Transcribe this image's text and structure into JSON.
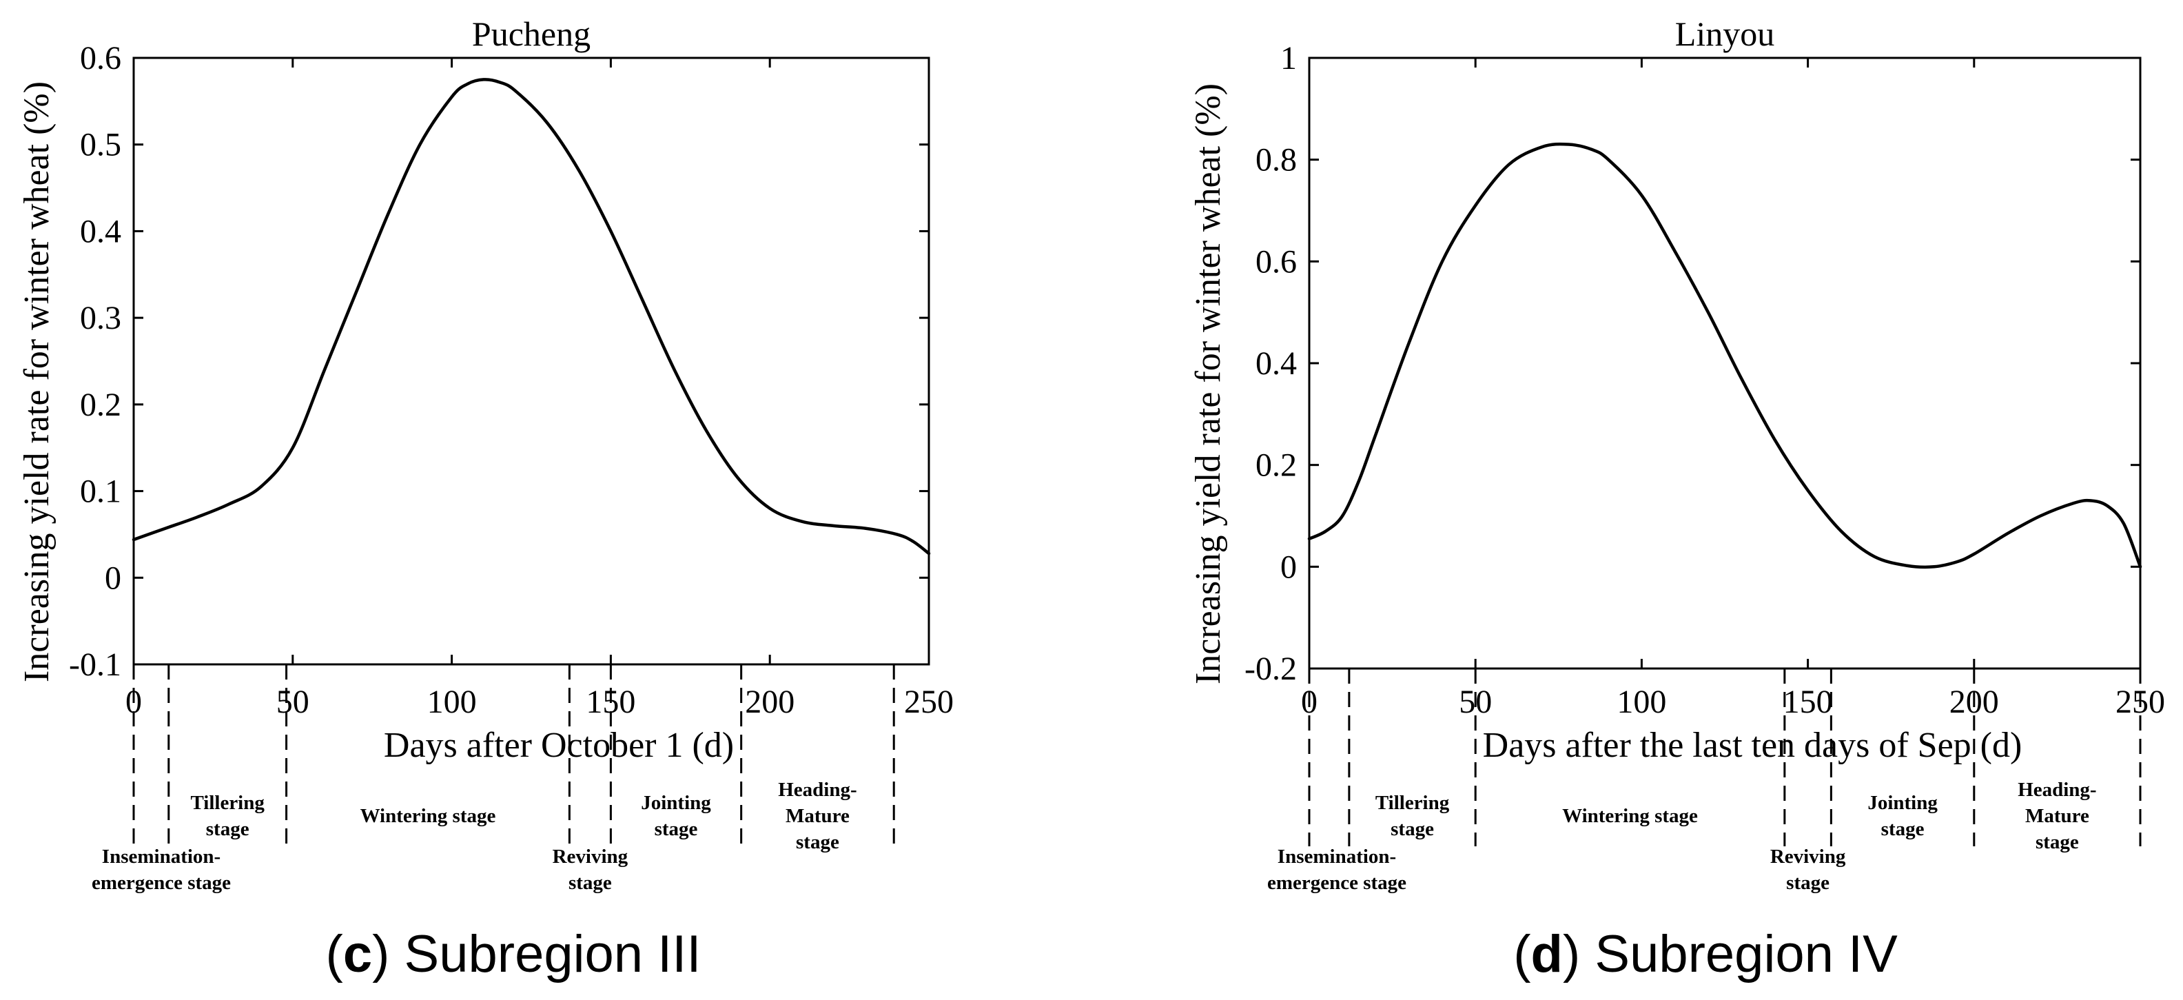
{
  "chart_data": [
    {
      "type": "line",
      "title": "Pucheng",
      "xlabel": "Days after October 1 (d)",
      "ylabel": "Increasing yield rate for winter wheat (%)",
      "xlim": [
        0,
        250
      ],
      "ylim": [
        -0.1,
        0.6
      ],
      "xticks": [
        0,
        50,
        100,
        150,
        200,
        250
      ],
      "xtick_labels": [
        "0",
        "50",
        "100",
        "150",
        "200",
        "250"
      ],
      "yticks": [
        -0.1,
        0,
        0.1,
        0.2,
        0.3,
        0.4,
        0.5,
        0.6
      ],
      "ytick_labels": [
        "-0.1",
        "0",
        "0.1",
        "0.2",
        "0.3",
        "0.4",
        "0.5",
        "0.6"
      ],
      "series": [
        {
          "name": "Increasing yield rate",
          "x": [
            0,
            10,
            20,
            30,
            40,
            50,
            60,
            70,
            80,
            90,
            100,
            105,
            110,
            115,
            120,
            130,
            140,
            150,
            160,
            170,
            180,
            190,
            200,
            210,
            220,
            230,
            240,
            245,
            250
          ],
          "y": [
            0.044,
            0.057,
            0.07,
            0.085,
            0.105,
            0.15,
            0.24,
            0.33,
            0.42,
            0.5,
            0.555,
            0.57,
            0.575,
            0.572,
            0.562,
            0.525,
            0.47,
            0.4,
            0.32,
            0.24,
            0.17,
            0.115,
            0.08,
            0.065,
            0.06,
            0.057,
            0.05,
            0.042,
            0.028
          ]
        }
      ],
      "stage_boundaries": [
        0,
        11,
        48,
        137,
        150,
        191,
        239
      ],
      "stages": [
        {
          "label_lines": [
            "Insemination-",
            "emergence stage"
          ]
        },
        {
          "label_lines": [
            "Tillering",
            "stage"
          ]
        },
        {
          "label_lines": [
            "Wintering stage"
          ]
        },
        {
          "label_lines": [
            "Reviving",
            "stage"
          ]
        },
        {
          "label_lines": [
            "Jointing",
            "stage"
          ]
        },
        {
          "label_lines": [
            "Heading-",
            "Mature",
            "stage"
          ]
        }
      ],
      "caption": {
        "letter": "c",
        "text": "Subregion III"
      }
    },
    {
      "type": "line",
      "title": "Linyou",
      "xlabel": "Days after the last ten days of Sep (d)",
      "ylabel": "Increasing yield rate for winter wheat (%)",
      "xlim": [
        0,
        250
      ],
      "ylim": [
        -0.2,
        1.0
      ],
      "xticks": [
        0,
        50,
        100,
        150,
        200,
        250
      ],
      "xtick_labels": [
        "0",
        "50",
        "100",
        "150",
        "200",
        "250"
      ],
      "yticks": [
        -0.2,
        0,
        0.2,
        0.4,
        0.6,
        0.8,
        1.0
      ],
      "ytick_labels": [
        "-0.2",
        "0",
        "0.2",
        "0.4",
        "0.6",
        "0.8",
        "1"
      ],
      "series": [
        {
          "name": "Increasing yield rate",
          "x": [
            0,
            5,
            10,
            15,
            20,
            30,
            40,
            50,
            60,
            70,
            78,
            85,
            90,
            100,
            110,
            120,
            130,
            140,
            150,
            160,
            170,
            180,
            188,
            195,
            200,
            210,
            220,
            230,
            235,
            240,
            245,
            250
          ],
          "y": [
            0.055,
            0.07,
            0.1,
            0.17,
            0.26,
            0.44,
            0.6,
            0.71,
            0.79,
            0.825,
            0.83,
            0.82,
            0.8,
            0.73,
            0.62,
            0.5,
            0.37,
            0.25,
            0.15,
            0.07,
            0.02,
            0.002,
            0.0,
            0.01,
            0.025,
            0.065,
            0.1,
            0.125,
            0.13,
            0.12,
            0.085,
            0.0
          ]
        }
      ],
      "stage_boundaries": [
        0,
        12,
        50,
        143,
        157,
        200,
        250
      ],
      "stages": [
        {
          "label_lines": [
            "Insemination-",
            "emergence stage"
          ]
        },
        {
          "label_lines": [
            "Tillering",
            "stage"
          ]
        },
        {
          "label_lines": [
            "Wintering stage"
          ]
        },
        {
          "label_lines": [
            "Reviving",
            "stage"
          ]
        },
        {
          "label_lines": [
            "Jointing",
            "stage"
          ]
        },
        {
          "label_lines": [
            "Heading-",
            "Mature",
            "stage"
          ]
        }
      ],
      "caption": {
        "letter": "d",
        "text": "Subregion IV"
      }
    }
  ]
}
